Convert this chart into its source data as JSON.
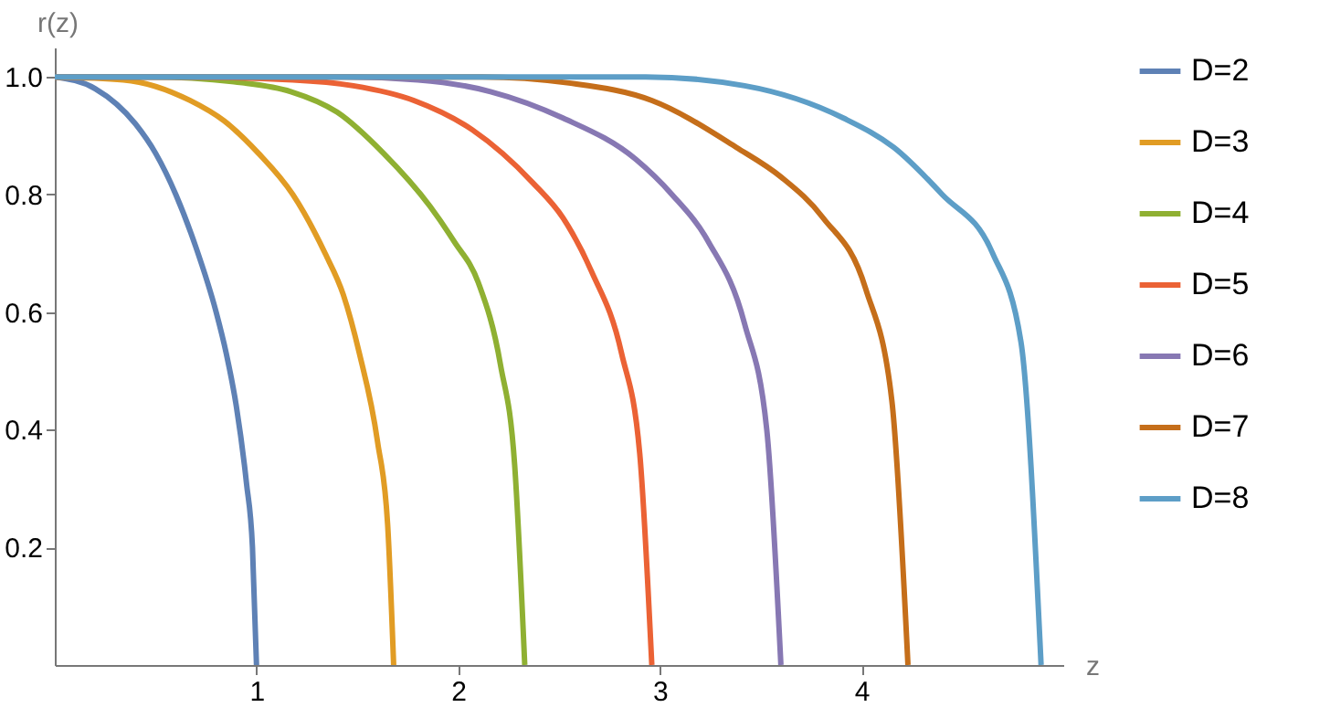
{
  "chart_data": {
    "type": "line",
    "xlabel": "z",
    "ylabel": "r(z)",
    "xlim": [
      0,
      5
    ],
    "ylim": [
      0,
      1.05
    ],
    "xticks": [
      1,
      2,
      3,
      4
    ],
    "yticks": [
      0.2,
      0.4,
      0.6,
      0.8,
      {
        "value": 1,
        "label": "1.0"
      }
    ],
    "grid": false,
    "legend": "right",
    "line_style": "solid",
    "marker": "none",
    "series": [
      {
        "name": "D=2",
        "color": "#5e81b5",
        "x": [
          0,
          0.2,
          0.4,
          0.5,
          0.6,
          0.7,
          0.8,
          0.85,
          0.9,
          0.95,
          0.98,
          1
        ],
        "values": [
          1,
          0.98,
          0.92,
          0.87,
          0.8,
          0.71,
          0.6,
          0.53,
          0.44,
          0.31,
          0.2,
          0
        ]
      },
      {
        "name": "D=3",
        "color": "#e19c24",
        "x": [
          0,
          0.34,
          0.67,
          0.84,
          1.01,
          1.18,
          1.34,
          1.43,
          1.51,
          1.6,
          1.65,
          1.68
        ],
        "values": [
          1,
          0.995,
          0.96,
          0.925,
          0.87,
          0.8,
          0.7,
          0.63,
          0.53,
          0.38,
          0.24,
          0
        ]
      },
      {
        "name": "D=4",
        "color": "#8fb032",
        "x": [
          0,
          0.47,
          0.93,
          1.17,
          1.4,
          1.63,
          1.86,
          1.98,
          2.1,
          2.21,
          2.28,
          2.33
        ],
        "values": [
          1,
          1,
          0.99,
          0.975,
          0.94,
          0.87,
          0.78,
          0.72,
          0.65,
          0.51,
          0.34,
          0
        ]
      },
      {
        "name": "D=5",
        "color": "#eb6235",
        "x": [
          0,
          0.59,
          1.18,
          1.48,
          1.78,
          2.07,
          2.37,
          2.52,
          2.66,
          2.81,
          2.9,
          2.96
        ],
        "values": [
          1,
          1,
          0.995,
          0.985,
          0.96,
          0.91,
          0.82,
          0.76,
          0.67,
          0.53,
          0.36,
          0
        ]
      },
      {
        "name": "D=6",
        "color": "#8778b3",
        "x": [
          0,
          0.72,
          1.44,
          1.8,
          2.16,
          2.52,
          2.88,
          3.06,
          3.24,
          3.42,
          3.53,
          3.6
        ],
        "values": [
          1,
          1,
          1,
          0.995,
          0.975,
          0.93,
          0.86,
          0.8,
          0.72,
          0.58,
          0.4,
          0
        ]
      },
      {
        "name": "D=7",
        "color": "#c56e1a",
        "x": [
          0,
          0.85,
          1.69,
          2.12,
          2.54,
          2.96,
          3.38,
          3.6,
          3.81,
          4.02,
          4.15,
          4.23
        ],
        "values": [
          1,
          1,
          1,
          1,
          0.99,
          0.96,
          0.88,
          0.83,
          0.76,
          0.64,
          0.45,
          0
        ]
      },
      {
        "name": "D=8",
        "color": "#5d9ec7",
        "x": [
          0,
          0.98,
          1.96,
          2.45,
          2.93,
          3.42,
          3.91,
          4.16,
          4.4,
          4.65,
          4.79,
          4.89
        ],
        "values": [
          1,
          1,
          1,
          1,
          1,
          0.985,
          0.93,
          0.88,
          0.8,
          0.7,
          0.55,
          0
        ]
      }
    ]
  }
}
